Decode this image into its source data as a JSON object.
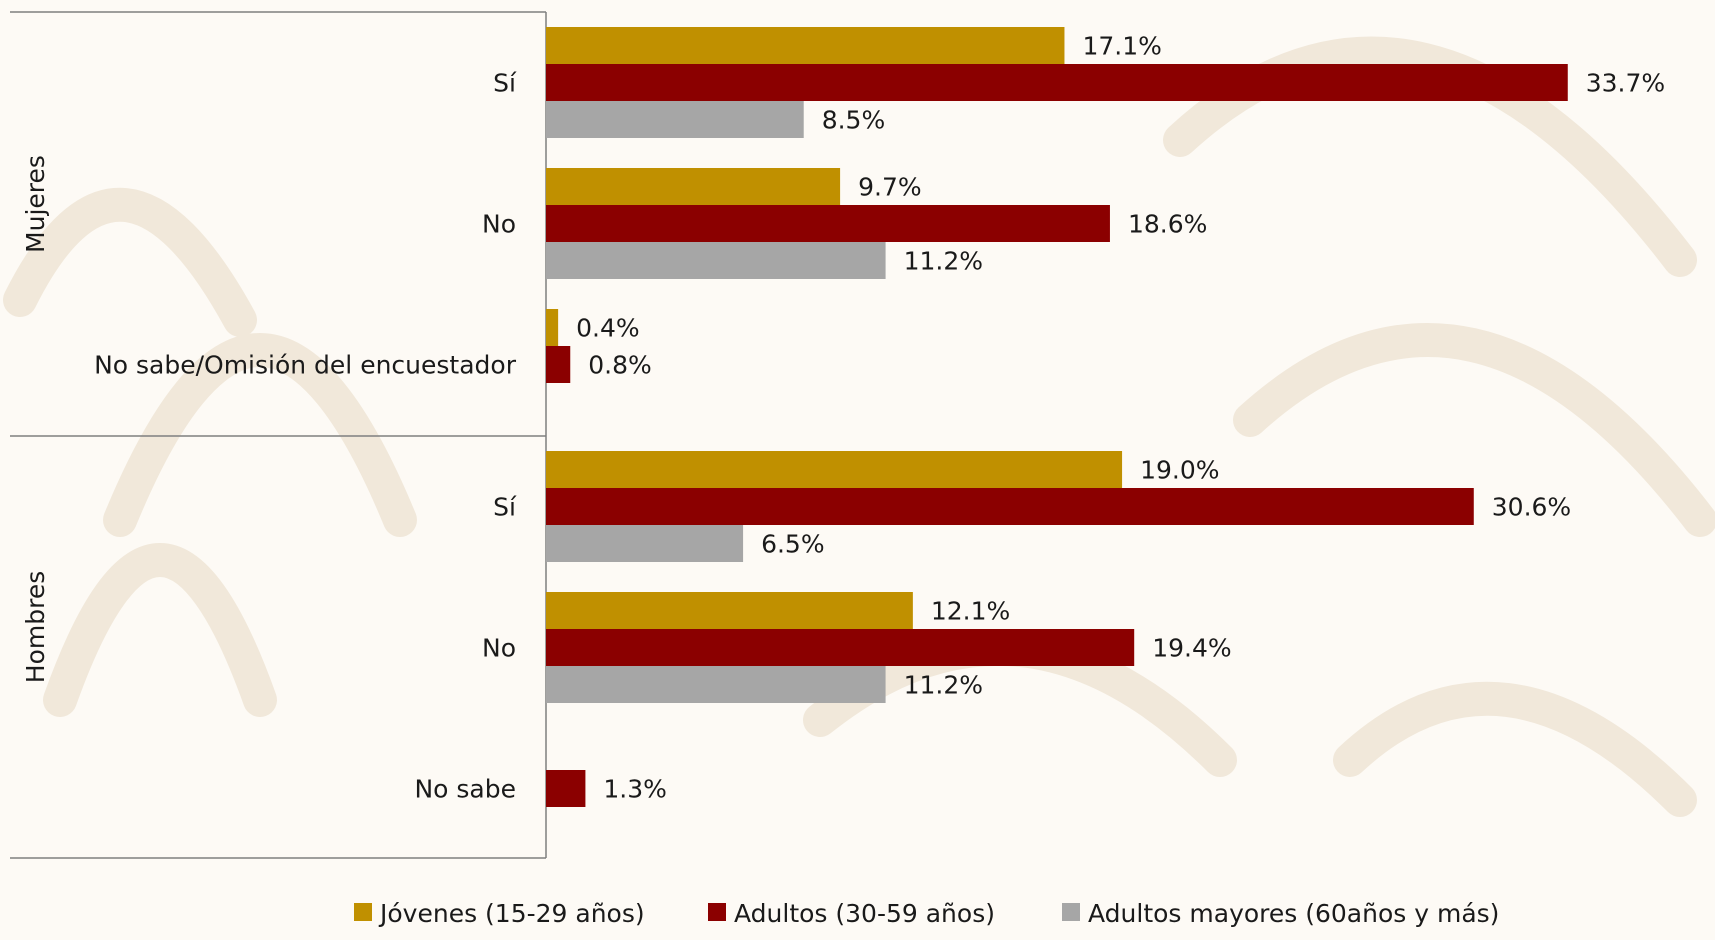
{
  "chart_data": {
    "type": "bar",
    "orientation": "horizontal",
    "groups": [
      {
        "name": "Mujeres",
        "categories": [
          {
            "label": "Sí",
            "values": [
              17.1,
              33.7,
              8.5
            ]
          },
          {
            "label": "No",
            "values": [
              9.7,
              18.6,
              11.2
            ]
          },
          {
            "label": "No sabe/Omisión del encuestador",
            "values": [
              0.4,
              0.8,
              null
            ]
          }
        ]
      },
      {
        "name": "Hombres",
        "categories": [
          {
            "label": "Sí",
            "values": [
              19.0,
              30.6,
              6.5
            ]
          },
          {
            "label": "No",
            "values": [
              12.1,
              19.4,
              11.2
            ]
          },
          {
            "label": "No sabe",
            "values": [
              null,
              1.3,
              null
            ]
          }
        ]
      }
    ],
    "series": [
      {
        "name": "Jóvenes (15-29 años)",
        "color": "#c09000"
      },
      {
        "name": "Adultos (30-59 años)",
        "color": "#8b0000"
      },
      {
        "name": "Adultos mayores (60años y más)",
        "color": "#a6a6a6"
      }
    ],
    "value_suffix": "%",
    "xlim": [
      0,
      35
    ],
    "grid": false,
    "legend_position": "bottom"
  }
}
